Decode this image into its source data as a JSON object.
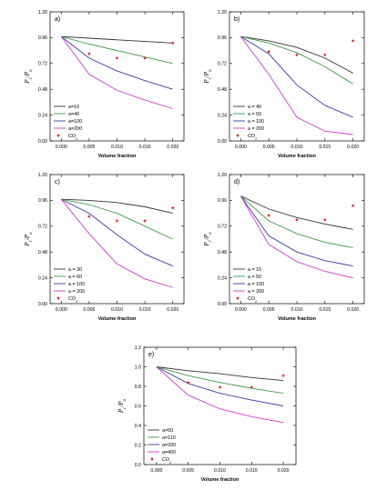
{
  "colors": {
    "black": "#333333",
    "green": "#3f9a3f",
    "blue": "#3a3aa6",
    "magenta": "#d238d2",
    "star": "#e02020"
  },
  "chart_data": [
    {
      "type": "line",
      "panel_label": "a)",
      "xlabel": "Volume fraction",
      "ylabel": "Pc/Po",
      "xlim": [
        -0.002,
        0.022
      ],
      "ylim": [
        0.0,
        1.2
      ],
      "xticks": [
        "0.000",
        "0.005",
        "0.010",
        "0.015",
        "0.020"
      ],
      "yticks": [
        "0.00",
        "0.24",
        "0.48",
        "0.72",
        "0.96",
        "1.20"
      ],
      "x": [
        0.0,
        0.005,
        0.01,
        0.015,
        0.02
      ],
      "series": [
        {
          "name": "a=10",
          "color": "black",
          "values": [
            0.97,
            0.955,
            0.94,
            0.925,
            0.91
          ]
        },
        {
          "name": "a=40",
          "color": "green",
          "values": [
            0.97,
            0.9,
            0.84,
            0.78,
            0.72
          ]
        },
        {
          "name": "a=100",
          "color": "blue",
          "values": [
            0.97,
            0.77,
            0.65,
            0.56,
            0.48
          ]
        },
        {
          "name": "a=200",
          "color": "magenta",
          "values": [
            0.97,
            0.62,
            0.47,
            0.38,
            0.3
          ]
        }
      ],
      "scatter": {
        "name": "CO2",
        "x": [
          0.005,
          0.01,
          0.015,
          0.02
        ],
        "y": [
          0.81,
          0.77,
          0.77,
          0.91
        ]
      }
    },
    {
      "type": "line",
      "panel_label": "b)",
      "xlabel": "Volume fraction",
      "ylabel": "Pc/Po",
      "xlim": [
        -0.002,
        0.022
      ],
      "ylim": [
        0.0,
        1.2
      ],
      "xticks": [
        "0.000",
        "0.005",
        "0.010",
        "0.015",
        "0.020"
      ],
      "yticks": [
        "0.00",
        "0.24",
        "0.48",
        "0.72",
        "0.96",
        "1.20"
      ],
      "x": [
        0.0,
        0.005,
        0.01,
        0.015,
        0.02
      ],
      "series": [
        {
          "name": "a = 40",
          "color": "black",
          "values": [
            0.97,
            0.93,
            0.87,
            0.77,
            0.63
          ]
        },
        {
          "name": "a = 50",
          "color": "green",
          "values": [
            0.97,
            0.91,
            0.82,
            0.69,
            0.53
          ]
        },
        {
          "name": "a = 100",
          "color": "blue",
          "values": [
            0.97,
            0.81,
            0.52,
            0.33,
            0.22
          ]
        },
        {
          "name": "a = 200",
          "color": "magenta",
          "values": [
            0.97,
            0.62,
            0.22,
            0.09,
            0.06
          ]
        }
      ],
      "scatter": {
        "name": "CO2",
        "x": [
          0.005,
          0.01,
          0.015,
          0.02
        ],
        "y": [
          0.83,
          0.8,
          0.8,
          0.93
        ]
      }
    },
    {
      "type": "line",
      "panel_label": "c)",
      "xlabel": "Volume fraction",
      "ylabel": "Pc/Po",
      "xlim": [
        -0.002,
        0.022
      ],
      "ylim": [
        0.0,
        1.2
      ],
      "xticks": [
        "0.000",
        "0.005",
        "0.010",
        "0.015",
        "0.020"
      ],
      "yticks": [
        "0.00",
        "0.24",
        "0.48",
        "0.72",
        "0.96",
        "1.20"
      ],
      "x": [
        0.0,
        0.005,
        0.01,
        0.015,
        0.02
      ],
      "series": [
        {
          "name": "a = 30",
          "color": "black",
          "values": [
            0.97,
            0.96,
            0.94,
            0.9,
            0.84
          ]
        },
        {
          "name": "a = 60",
          "color": "green",
          "values": [
            0.97,
            0.92,
            0.84,
            0.72,
            0.6
          ]
        },
        {
          "name": "a = 100",
          "color": "blue",
          "values": [
            0.97,
            0.84,
            0.64,
            0.46,
            0.35
          ]
        },
        {
          "name": "a = 200",
          "color": "magenta",
          "values": [
            0.97,
            0.65,
            0.37,
            0.23,
            0.15
          ]
        }
      ],
      "scatter": {
        "name": "CO2",
        "x": [
          0.005,
          0.01,
          0.015,
          0.02
        ],
        "y": [
          0.81,
          0.77,
          0.77,
          0.89
        ]
      }
    },
    {
      "type": "line",
      "panel_label": "d)",
      "xlabel": "Volume fraction",
      "ylabel": "Pc/Po",
      "xlim": [
        -0.002,
        0.022
      ],
      "ylim": [
        0.0,
        1.2
      ],
      "xticks": [
        "0.000",
        "0.005",
        "0.010",
        "0.015",
        "0.020"
      ],
      "yticks": [
        "0.00",
        "0.24",
        "0.48",
        "0.72",
        "0.96",
        "1.20"
      ],
      "x": [
        0.0,
        0.005,
        0.01,
        0.015,
        0.02
      ],
      "series": [
        {
          "name": "a = 15",
          "color": "black",
          "values": [
            1.0,
            0.88,
            0.8,
            0.74,
            0.69
          ]
        },
        {
          "name": "a = 50",
          "color": "green",
          "values": [
            1.0,
            0.77,
            0.65,
            0.57,
            0.52
          ]
        },
        {
          "name": "a = 100",
          "color": "blue",
          "values": [
            1.0,
            0.63,
            0.48,
            0.4,
            0.35
          ]
        },
        {
          "name": "a = 200",
          "color": "magenta",
          "values": [
            1.0,
            0.55,
            0.39,
            0.3,
            0.24
          ]
        }
      ],
      "scatter": {
        "name": "CO2",
        "x": [
          0.005,
          0.01,
          0.015,
          0.02
        ],
        "y": [
          0.82,
          0.78,
          0.78,
          0.91
        ]
      }
    },
    {
      "type": "line",
      "panel_label": "e)",
      "xlabel": "Volume fraction",
      "ylabel": "Pc/Po",
      "xlim": [
        -0.002,
        0.022
      ],
      "ylim": [
        0.0,
        1.2
      ],
      "xticks": [
        "0.000",
        "0.005",
        "0.010",
        "0.015",
        "0.020"
      ],
      "yticks": [
        "0.0",
        "0.2",
        "0.4",
        "0.6",
        "0.8",
        "1.0",
        "1.2"
      ],
      "x": [
        0.0,
        0.005,
        0.01,
        0.015,
        0.02
      ],
      "series": [
        {
          "name": "a=50",
          "color": "black",
          "values": [
            1.0,
            0.96,
            0.93,
            0.89,
            0.86
          ]
        },
        {
          "name": "a=110",
          "color": "green",
          "values": [
            1.0,
            0.91,
            0.84,
            0.78,
            0.73
          ]
        },
        {
          "name": "a=200",
          "color": "blue",
          "values": [
            1.0,
            0.83,
            0.73,
            0.66,
            0.6
          ]
        },
        {
          "name": "a=400",
          "color": "magenta",
          "values": [
            1.0,
            0.71,
            0.57,
            0.49,
            0.43
          ]
        }
      ],
      "scatter": {
        "name": "CO2",
        "x": [
          0.005,
          0.01,
          0.015,
          0.02
        ],
        "y": [
          0.84,
          0.79,
          0.79,
          0.91
        ]
      }
    }
  ]
}
